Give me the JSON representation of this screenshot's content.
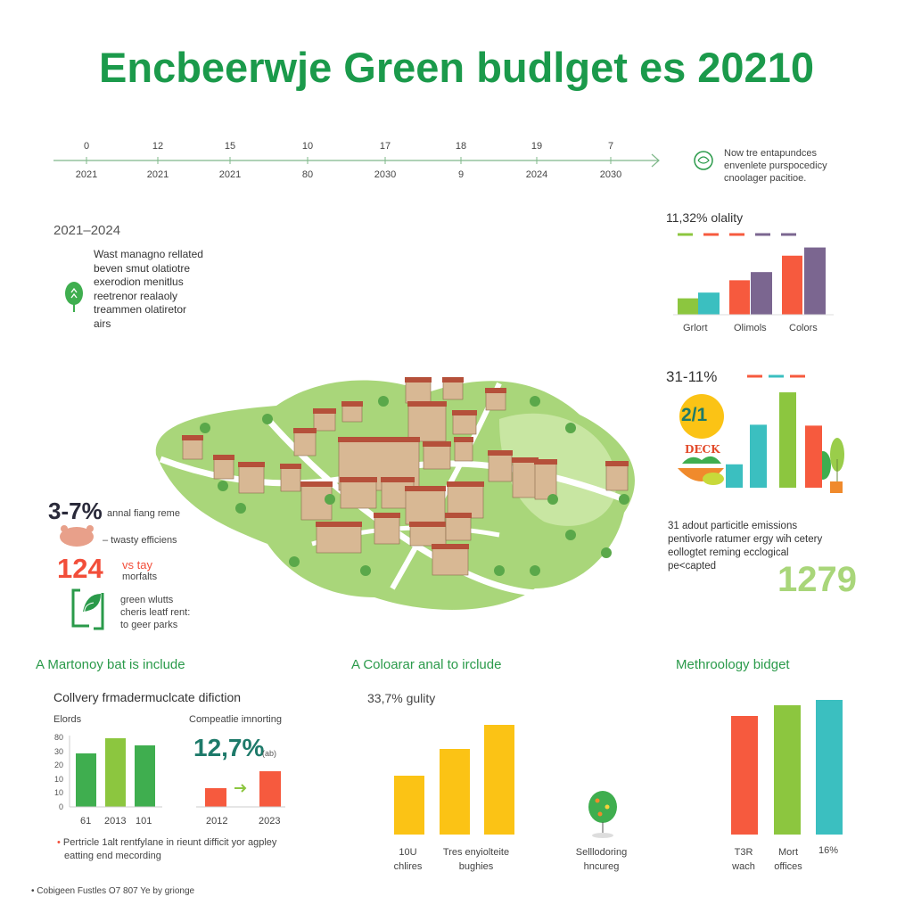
{
  "title": "Encbeerwje Green budlget es 20210",
  "timeline": {
    "top_labels": [
      "0",
      "12",
      "15",
      "10",
      "17",
      "18",
      "19",
      "7"
    ],
    "bottom_labels": [
      "2021",
      "2021",
      "2021",
      "80",
      "2030",
      "9",
      "2024",
      "2030"
    ]
  },
  "note_top_right": {
    "icon": "leaf-circle-icon",
    "lines": [
      "Now tre entapundces",
      "envenlete purspocedicy",
      "cnoolager pacitioe."
    ]
  },
  "left_block": {
    "period": "2021–2024",
    "icon": "sprout-icon",
    "lines": [
      "Wast managno rellated",
      "beven smut olatiotre",
      "exerodion menitlus",
      "reetrenor realaoly",
      "treammen olatiretor",
      "airs"
    ]
  },
  "left_stats": {
    "stat1_value": "3-7%",
    "stat1_label": "annal fiang reme",
    "stat2_icon": "pig-icon",
    "stat2_label": "– twasty efficiens",
    "stat3_value": "124",
    "stat3_label1": "vs tay",
    "stat3_label2": "morfalts",
    "stat4_icon": "recycle-leaf-icon",
    "stat4_lines": [
      "green wlutts",
      "cheris leatf rent:",
      "to geer parks"
    ]
  },
  "right_stats": {
    "lines": [
      "31 adout particitle emissions",
      "pentivorle ratumer ergy wih cetery",
      "eollogtet reming ecclogical",
      "pe<capted"
    ],
    "big_value": "1279",
    "badge_value": "2/1",
    "badge_word": "DECK"
  },
  "sections": {
    "left_heading": "A Martonoy bat is include",
    "left_subtitle": "Collvery frmadermuclcate difiction",
    "left_note_lines": [
      "Pertricle 1alt rentfylane in rieunt difficit yor agpley",
      "eatting end mecording"
    ],
    "middle_heading": "A Coloarar anal to irclude",
    "right_heading": "Methroology bidget"
  },
  "footer": "Cobigeen Fustles O7 807 Ye by grionge",
  "colors": {
    "title_green": "#1b9a4b",
    "green": "#3fae4f",
    "light_green": "#8cc63f",
    "teal": "#3bbfc0",
    "red": "#f65a3e",
    "purple": "#7b6690",
    "yellow": "#fbc315",
    "dark_teal": "#1e7a6a"
  },
  "chart_data": [
    {
      "type": "bar",
      "title": "11,32% olality",
      "categories": [
        "Grlort",
        "Olimols",
        "Colors"
      ],
      "series": [
        {
          "values": [
            20,
            42,
            72
          ]
        },
        {
          "values": [
            27,
            52,
            82
          ]
        }
      ],
      "series_colors": [
        [
          "#8cc63f",
          "#f65a3e",
          "#f65a3e"
        ],
        [
          "#3bbfc0",
          "#7b6690",
          "#7b6690"
        ]
      ],
      "legend_colors": [
        "#8cc63f",
        "#f65a3e",
        "#f65a3e",
        "#7b6690",
        "#7b6690"
      ],
      "ylim": [
        0,
        100
      ]
    },
    {
      "type": "bar",
      "title": "31-11%",
      "values": [
        26,
        70,
        106,
        69
      ],
      "colors": [
        "#3bbfc0",
        "#3bbfc0",
        "#8cc63f",
        "#f65a3e"
      ],
      "legend_colors": [
        "#f65a3e",
        "#3bbfc0",
        "#f65a3e"
      ],
      "ylim": [
        0,
        110
      ]
    },
    {
      "type": "bar",
      "title": "Elords",
      "y_tick_labels": [
        "80",
        "30",
        "20",
        "10",
        "10",
        "0"
      ],
      "categories": [
        "61",
        "2013",
        "101"
      ],
      "values": [
        60,
        77,
        69
      ],
      "colors": [
        "#3fae4f",
        "#8cc63f",
        "#3fae4f"
      ],
      "ylim": [
        0,
        77
      ]
    },
    {
      "type": "bar",
      "title": "Compeatlie imnorting",
      "annotation": "12,7%",
      "annotation_unit": "(ab)",
      "categories": [
        "2012",
        "2023"
      ],
      "values": [
        21,
        40
      ],
      "colors": [
        "#f65a3e",
        "#f65a3e"
      ],
      "ylim": [
        0,
        40
      ]
    },
    {
      "type": "bar",
      "title": "33,7% gulity",
      "categories": [
        "10U chlires",
        "Tres enyiolteite bughies",
        ""
      ],
      "values": [
        66,
        96,
        123
      ],
      "colors": [
        "#fbc315",
        "#fbc315",
        "#fbc315"
      ],
      "ylim": [
        0,
        123
      ],
      "extra_label": "Selllodoring hncureg"
    },
    {
      "type": "bar",
      "categories": [
        "T3R wach",
        "Mort offices",
        "16%"
      ],
      "values": [
        133,
        145,
        151
      ],
      "colors": [
        "#f65a3e",
        "#8cc63f",
        "#3bbfc0"
      ],
      "ylim": [
        0,
        151
      ]
    }
  ]
}
